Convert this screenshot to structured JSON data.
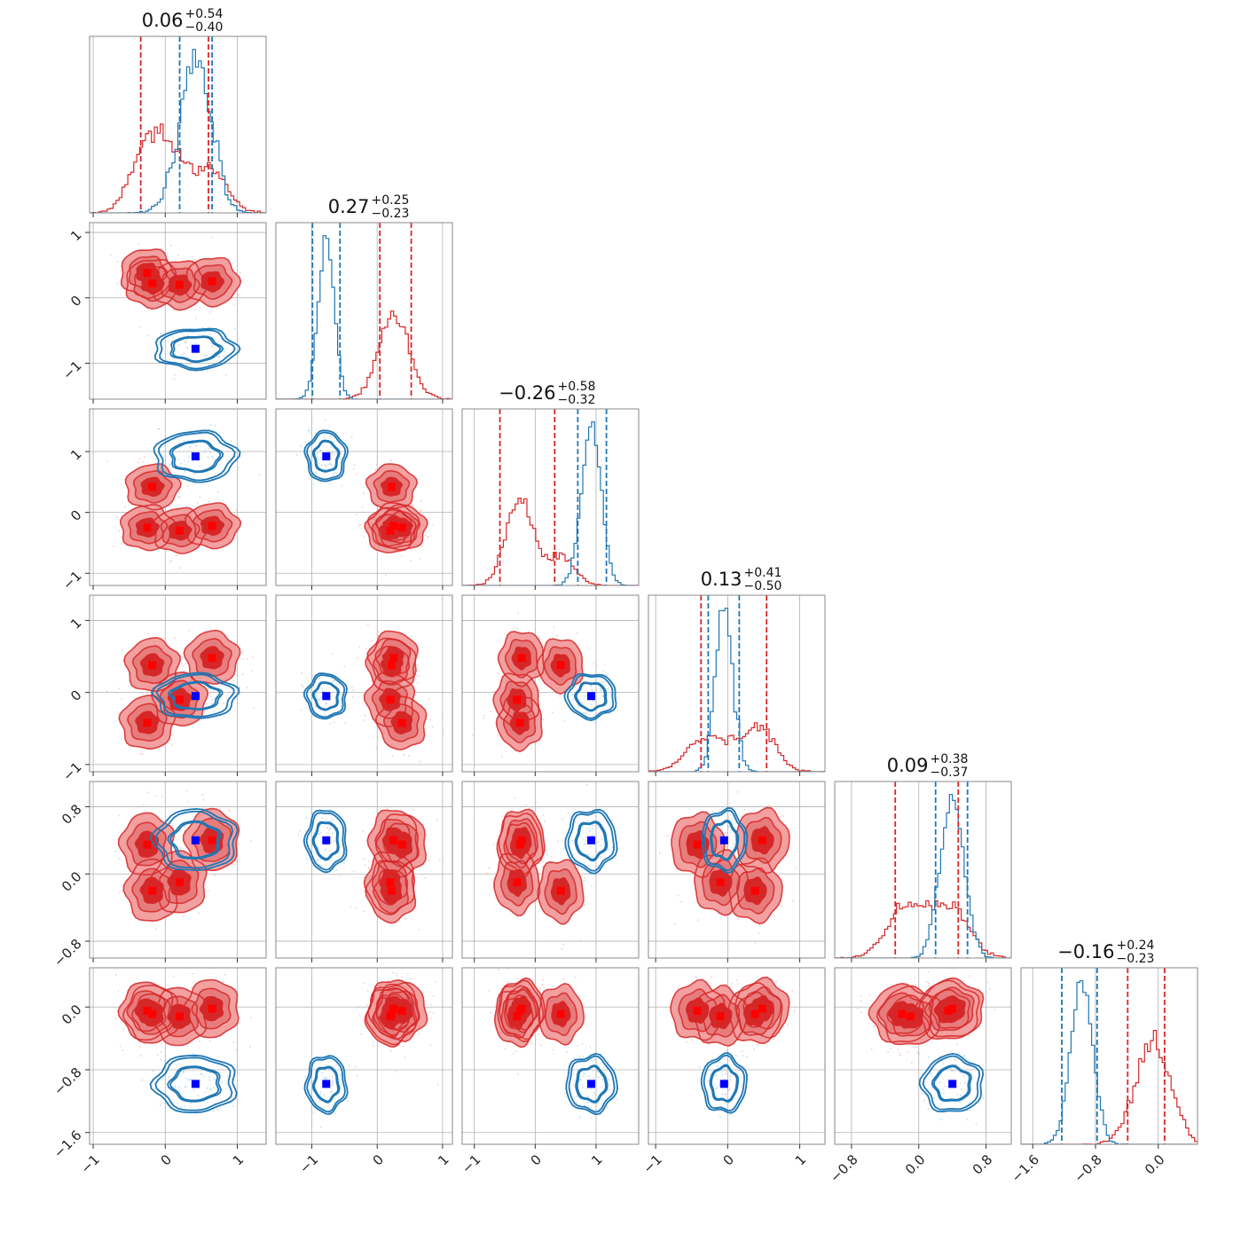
{
  "chart_data": {
    "type": "corner",
    "colors": {
      "red": "#d62728",
      "blue": "#1f77b4",
      "red_light": "#f2a0a0",
      "red_mid": "#e77c7c",
      "grid": "#b0b0b0"
    },
    "params": [
      {
        "title_val": "0.06",
        "title_up": "+0.54",
        "title_lo": "−0.40",
        "range": [
          -1.05,
          1.4
        ],
        "ticks": [
          -1,
          0,
          1
        ],
        "tick_labels": [
          "−1",
          "0",
          "1"
        ]
      },
      {
        "title_val": "0.27",
        "title_up": "+0.25",
        "title_lo": "−0.23",
        "range": [
          -1.55,
          1.15
        ],
        "ticks": [
          -1,
          0,
          1
        ],
        "tick_labels": [
          "−1",
          "0",
          "1"
        ]
      },
      {
        "title_val": "−0.26",
        "title_up": "+0.58",
        "title_lo": "−0.32",
        "range": [
          -1.2,
          1.7
        ],
        "ticks": [
          -1,
          0,
          1
        ],
        "tick_labels": [
          "−1",
          "0",
          "1"
        ]
      },
      {
        "title_val": "0.13",
        "title_up": "+0.41",
        "title_lo": "−0.50",
        "range": [
          -1.1,
          1.35
        ],
        "ticks": [
          -1,
          0,
          1
        ],
        "tick_labels": [
          "−1",
          "0",
          "1"
        ]
      },
      {
        "title_val": "0.09",
        "title_up": "+0.38",
        "title_lo": "−0.37",
        "range": [
          -1.0,
          1.1
        ],
        "ticks": [
          -0.8,
          0.0,
          0.8
        ],
        "tick_labels": [
          "−0.8",
          "0.0",
          "0.8"
        ]
      },
      {
        "title_val": "−0.16",
        "title_up": "+0.24",
        "title_lo": "−0.23",
        "range": [
          -1.75,
          0.5
        ],
        "ticks": [
          -1.6,
          -0.8,
          0.0
        ],
        "tick_labels": [
          "−1.6",
          "−0.8",
          "0.0"
        ]
      }
    ],
    "red_modes": [
      [
        -0.25,
        0.38,
        -0.25,
        -0.42,
        0.35,
        -0.05
      ],
      [
        -0.18,
        0.22,
        0.42,
        0.38,
        -0.2,
        -0.09
      ],
      [
        0.2,
        0.2,
        -0.3,
        -0.1,
        -0.1,
        -0.12
      ],
      [
        0.65,
        0.25,
        -0.22,
        0.48,
        0.4,
        -0.02
      ]
    ],
    "blue_mode": [
      0.42,
      -0.78,
      0.92,
      -0.05,
      0.4,
      -0.98
    ],
    "red_spread": 0.16,
    "blue_spread": [
      0.22,
      0.12,
      0.16,
      0.12,
      0.14,
      0.14
    ],
    "quantiles_red": [
      [
        -0.34,
        0.6
      ],
      [
        0.04,
        0.52
      ],
      [
        -0.58,
        0.32
      ],
      [
        -0.37,
        0.54
      ],
      [
        -0.28,
        0.47
      ],
      [
        -0.39,
        0.08
      ]
    ],
    "quantiles_blue": [
      [
        0.2,
        0.65
      ],
      [
        -0.99,
        -0.57
      ],
      [
        0.7,
        1.17
      ],
      [
        -0.27,
        0.16
      ],
      [
        0.2,
        0.58
      ],
      [
        -1.23,
        -0.78
      ]
    ]
  }
}
